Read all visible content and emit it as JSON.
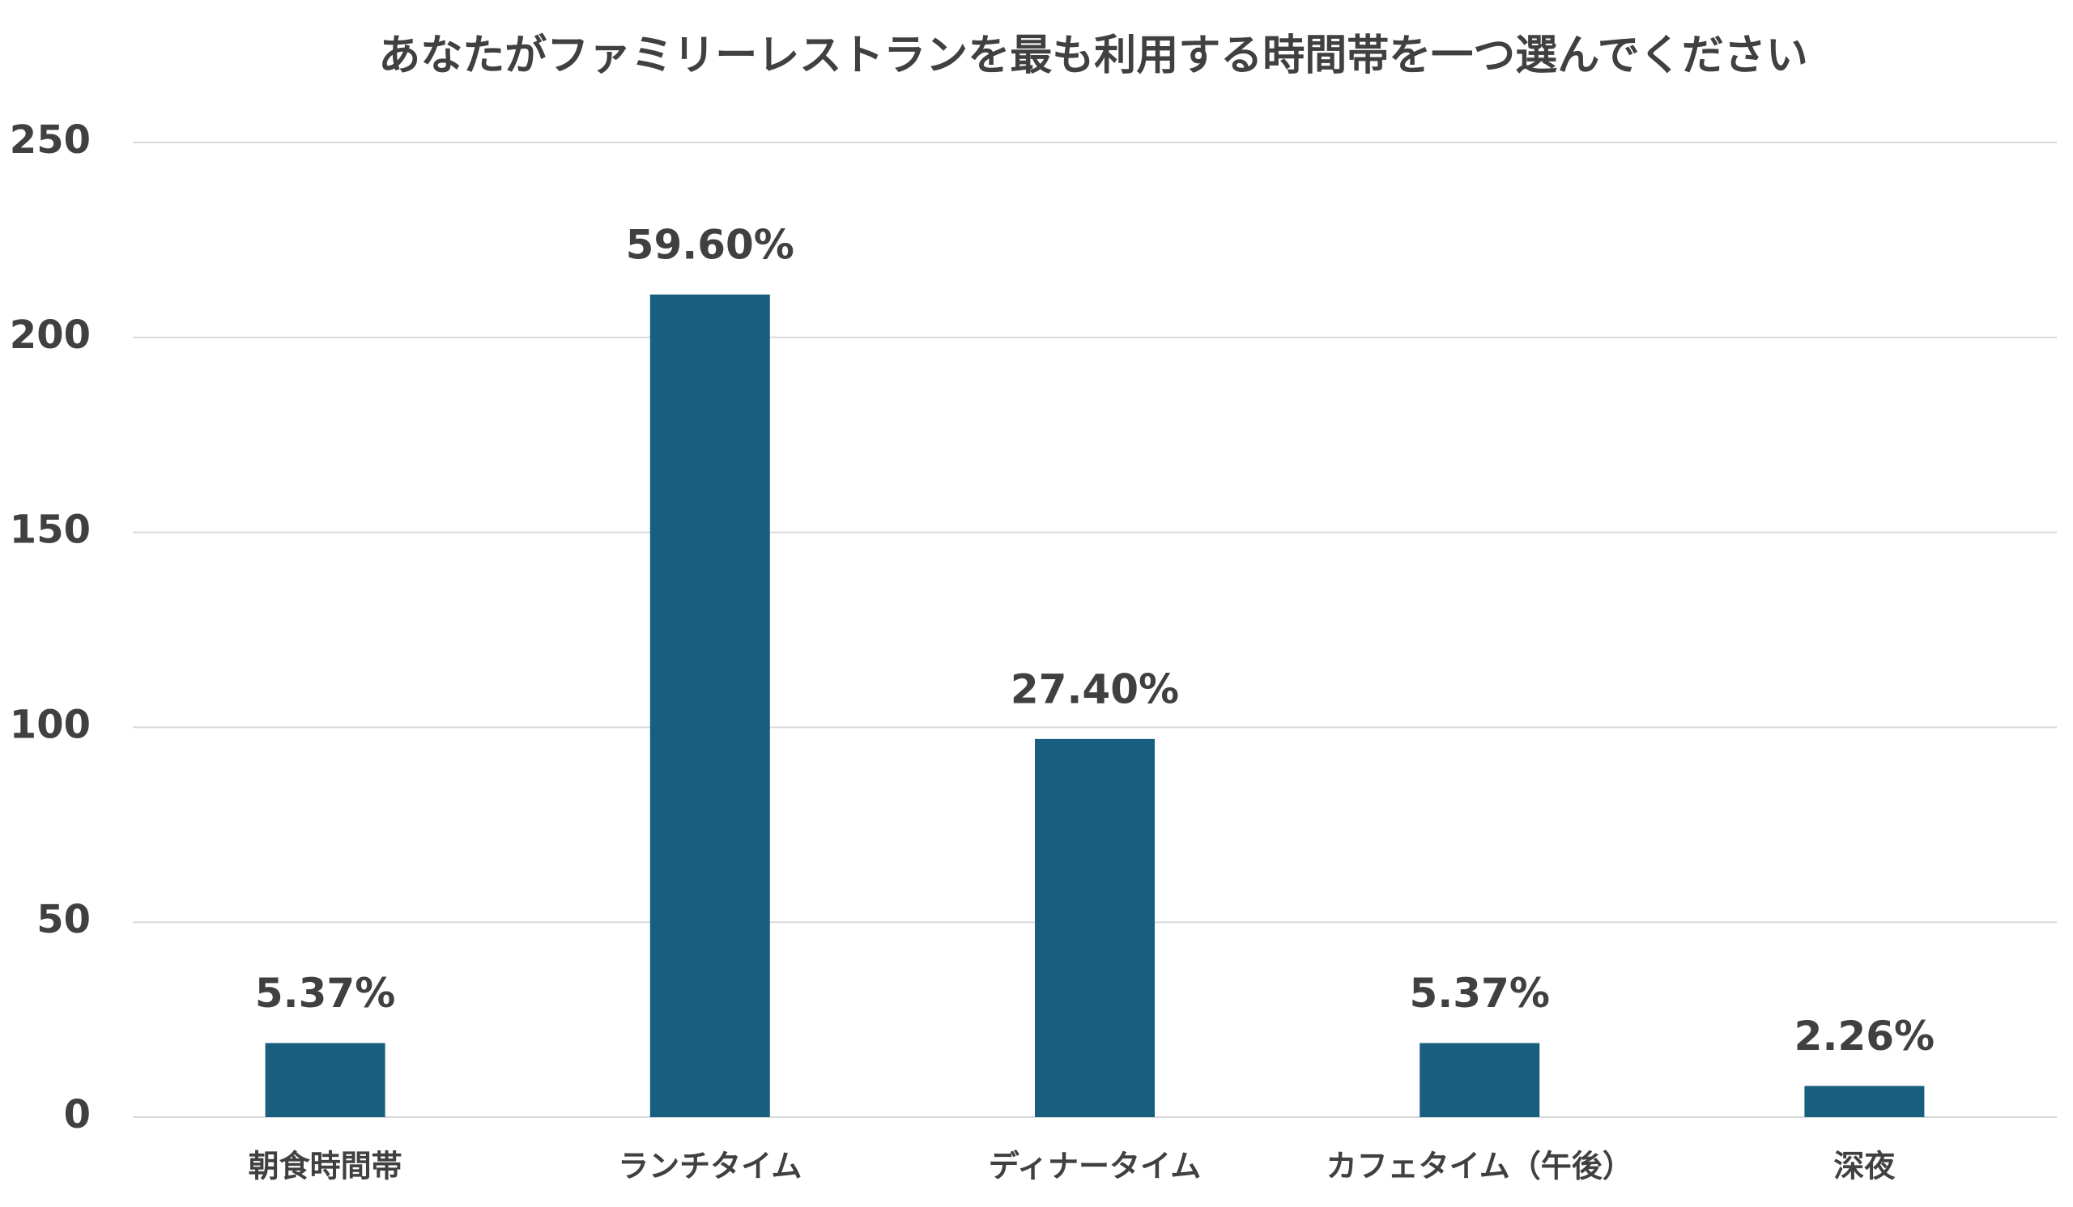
{
  "chart_data": {
    "type": "bar",
    "title": "あなたがファミリーレストランを最も利用する時間帯を一つ選んでください",
    "categories": [
      "朝食時間帯",
      "ランチタイム",
      "ディナータイム",
      "カフェタイム（午後）",
      "深夜"
    ],
    "values": [
      19,
      211,
      97,
      19,
      8
    ],
    "data_labels": [
      "5.37%",
      "59.60%",
      "27.40%",
      "5.37%",
      "2.26%"
    ],
    "color": "#175e7f",
    "ylim": [
      0,
      250
    ],
    "yticks": [
      0,
      50,
      100,
      150,
      200,
      250
    ],
    "grid": true
  }
}
